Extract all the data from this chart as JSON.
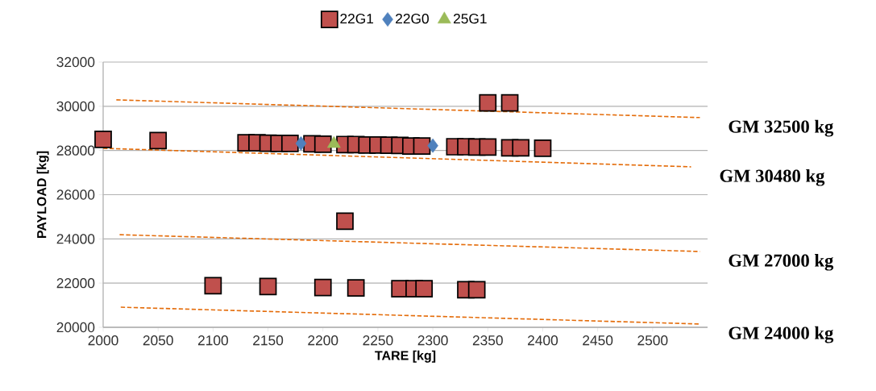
{
  "chart_data": {
    "type": "scatter",
    "xlabel": "TARE [kg]",
    "ylabel": "PAYLOAD [kg]",
    "xlim": [
      2000,
      2550
    ],
    "xticks": [
      2000,
      2050,
      2100,
      2150,
      2200,
      2250,
      2300,
      2350,
      2400,
      2450,
      2500
    ],
    "ylim": [
      20000,
      32000
    ],
    "yticks": [
      20000,
      22000,
      24000,
      26000,
      28000,
      30000,
      32000
    ],
    "grid": "y",
    "legend": "top",
    "series": [
      {
        "name": "22G1",
        "marker": "square",
        "color": "#c0504d",
        "x": [
          2000,
          2050,
          2100,
          2130,
          2140,
          2150,
          2150,
          2160,
          2170,
          2190,
          2200,
          2200,
          2220,
          2220,
          2230,
          2230,
          2240,
          2250,
          2260,
          2270,
          2270,
          2280,
          2283,
          2290,
          2292,
          2320,
          2330,
          2330,
          2340,
          2340,
          2350,
          2350,
          2370,
          2370,
          2380,
          2400
        ],
        "values": [
          28500,
          28450,
          21880,
          28350,
          28350,
          28330,
          21850,
          28320,
          28320,
          28300,
          28280,
          21800,
          28270,
          24800,
          28270,
          21780,
          28250,
          28250,
          28240,
          28230,
          21750,
          28200,
          21750,
          28200,
          21750,
          28170,
          28170,
          21700,
          28160,
          21700,
          28160,
          30150,
          28120,
          30150,
          28120,
          28100
        ]
      },
      {
        "name": "22G0",
        "marker": "diamond",
        "color": "#4f81bd",
        "x": [
          2180,
          2300
        ],
        "values": [
          28320,
          28220
        ]
      },
      {
        "name": "25G1",
        "marker": "triangle",
        "color": "#9bbb59",
        "x": [
          2210
        ],
        "values": [
          28300
        ]
      },
      {
        "name": "GM 32500 kg",
        "type": "line",
        "marker": "none",
        "line_style": "dashed",
        "color": "#e46c0a",
        "x": [
          2012,
          2543
        ],
        "values": [
          30290,
          29490
        ]
      },
      {
        "name": "GM 30480 kg",
        "type": "line",
        "marker": "none",
        "line_style": "dashed",
        "color": "#e46c0a",
        "x": [
          2000,
          2535
        ],
        "values": [
          28100,
          27260
        ]
      },
      {
        "name": "GM 27000 kg",
        "type": "line",
        "marker": "none",
        "line_style": "dashed",
        "color": "#e46c0a",
        "x": [
          2015,
          2543
        ],
        "values": [
          24190,
          23430
        ]
      },
      {
        "name": "GM 24000 kg",
        "type": "line",
        "marker": "none",
        "line_style": "dashed",
        "color": "#e46c0a",
        "x": [
          2016,
          2543
        ],
        "values": [
          20910,
          20150
        ]
      }
    ]
  }
}
